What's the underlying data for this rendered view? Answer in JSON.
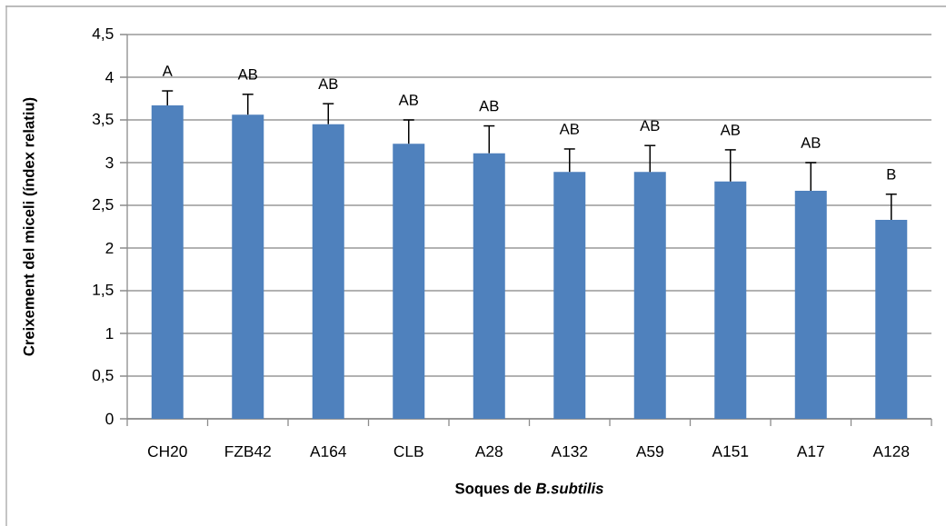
{
  "chart_data": {
    "type": "bar",
    "xlabel": "Soques de *B.subtilis*",
    "ylabel": "Creixement del miceli (índex relatiu)",
    "categories": [
      "CH20",
      "FZB42",
      "A164",
      "CLB",
      "A28",
      "A132",
      "A59",
      "A151",
      "A17",
      "A128"
    ],
    "values": [
      3.67,
      3.56,
      3.45,
      3.22,
      3.11,
      2.89,
      2.89,
      2.78,
      2.67,
      2.33
    ],
    "errors": [
      [
        3.67,
        3.84
      ],
      [
        3.56,
        3.8
      ],
      [
        3.45,
        3.69
      ],
      [
        3.22,
        3.5
      ],
      [
        3.11,
        3.43
      ],
      [
        2.89,
        3.16
      ],
      [
        2.89,
        3.2
      ],
      [
        2.78,
        3.15
      ],
      [
        2.67,
        3.0
      ],
      [
        2.33,
        2.63
      ]
    ],
    "color": "#4f81bd",
    "annotations": [
      "A",
      "AB",
      "AB",
      "AB",
      "AB",
      "AB",
      "AB",
      "AB",
      "AB",
      "B"
    ],
    "ylim": [
      0,
      4.5
    ],
    "yticks": [
      0,
      {
        "value": 0.5,
        "label": "0,5"
      },
      1,
      {
        "value": 1.5,
        "label": "1,5"
      },
      2,
      {
        "value": 2.5,
        "label": "2,5"
      },
      3,
      {
        "value": 3.5,
        "label": "3,5"
      },
      4,
      {
        "value": 4.5,
        "label": "4,5"
      }
    ],
    "grid": "y"
  }
}
